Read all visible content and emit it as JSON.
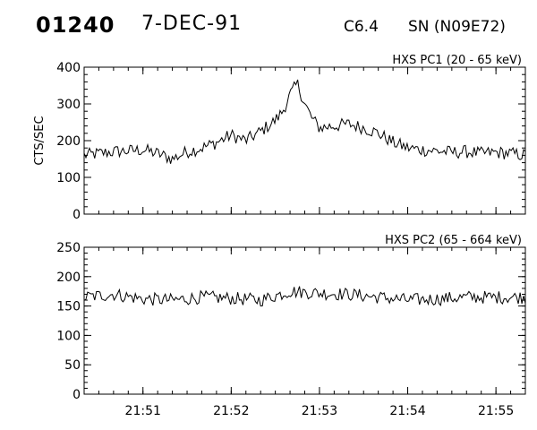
{
  "header": {
    "event_id": "01240",
    "date": "7-DEC-91",
    "goes_class": "C6.4",
    "location": "SN (N09E72)"
  },
  "chart_data": [
    {
      "type": "line",
      "title": "HXS PC1 (20 - 65 keV)",
      "ylabel": "CTS/SEC",
      "xlabel": "",
      "ylim": [
        0,
        400
      ],
      "yticks": [
        0,
        100,
        200,
        300,
        400
      ],
      "xlim": [
        "21:50:20",
        "21:55:20"
      ],
      "xticks": [
        "21:51",
        "21:52",
        "21:53",
        "21:54",
        "21:55"
      ],
      "x_tick_labels_shown": false,
      "series": [
        {
          "x": [
            "21:50:20",
            "21:50:30",
            "21:50:40",
            "21:50:50",
            "21:51:00",
            "21:51:10",
            "21:51:20",
            "21:51:30",
            "21:51:40",
            "21:51:50",
            "21:52:00",
            "21:52:10",
            "21:52:20",
            "21:52:30",
            "21:52:35",
            "21:52:40",
            "21:52:45",
            "21:52:50",
            "21:52:55",
            "21:53:00",
            "21:53:10",
            "21:53:20",
            "21:53:30",
            "21:53:40",
            "21:53:50",
            "21:54:00",
            "21:54:10",
            "21:54:20",
            "21:54:30",
            "21:54:40",
            "21:54:50",
            "21:55:00",
            "21:55:10",
            "21:55:20"
          ],
          "values": [
            160,
            165,
            170,
            172,
            175,
            165,
            150,
            170,
            180,
            195,
            215,
            200,
            225,
            255,
            280,
            325,
            355,
            300,
            260,
            235,
            240,
            245,
            235,
            220,
            195,
            180,
            175,
            172,
            168,
            170,
            165,
            168,
            165,
            160
          ]
        }
      ]
    },
    {
      "type": "line",
      "title": "HXS PC2 (65 - 664 keV)",
      "ylabel": "",
      "xlabel": "",
      "ylim": [
        0,
        250
      ],
      "yticks": [
        0,
        50,
        100,
        150,
        200,
        250
      ],
      "xlim": [
        "21:50:20",
        "21:55:20"
      ],
      "xticks": [
        "21:51",
        "21:52",
        "21:53",
        "21:54",
        "21:55"
      ],
      "x_tick_labels_shown": true,
      "series": [
        {
          "x": [
            "21:50:20",
            "21:50:40",
            "21:51:00",
            "21:51:20",
            "21:51:40",
            "21:52:00",
            "21:52:20",
            "21:52:40",
            "21:53:00",
            "21:53:20",
            "21:53:40",
            "21:54:00",
            "21:54:20",
            "21:54:40",
            "21:55:00",
            "21:55:20"
          ],
          "values": [
            165,
            170,
            162,
            160,
            165,
            163,
            160,
            175,
            172,
            170,
            165,
            160,
            162,
            165,
            165,
            165
          ]
        }
      ]
    }
  ]
}
